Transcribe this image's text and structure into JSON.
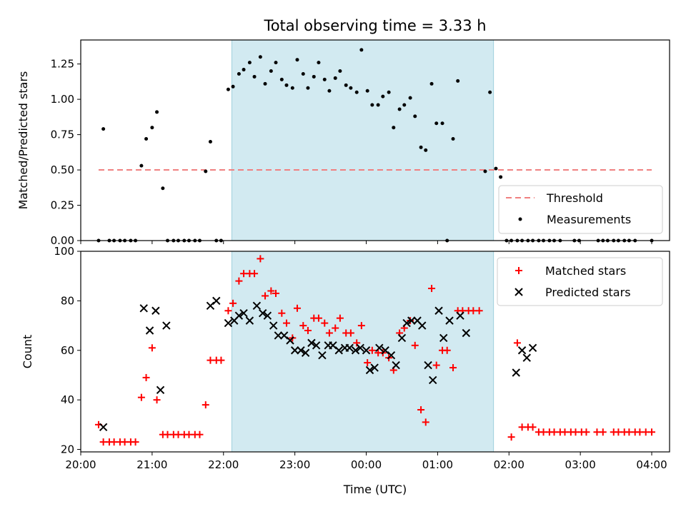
{
  "title": "Total observing time = 3.33 h",
  "colors": {
    "threshold": "#f08080",
    "measurement": "#000000",
    "matched": "#ff0000",
    "predicted": "#000000",
    "observing_span": "#add8e6"
  },
  "chart_data": [
    {
      "type": "scatter",
      "panel": "top",
      "ylabel": "Matched/Predicted stars",
      "xlim": [
        "20:00",
        "04:15"
      ],
      "ylim": [
        0,
        1.42
      ],
      "yticks": [
        "0.00",
        "0.25",
        "0.50",
        "0.75",
        "1.00",
        "1.25"
      ],
      "grid": false,
      "legend_position": "lower-right",
      "shaded_span": [
        "22:07",
        "01:47"
      ],
      "threshold": {
        "name": "Threshold",
        "value": 0.5,
        "x_range": [
          "20:15",
          "04:00"
        ]
      },
      "series": [
        {
          "name": "Measurements",
          "points": [
            [
              "20:15",
              0.0
            ],
            [
              "20:19",
              0.79
            ],
            [
              "20:24",
              0.0
            ],
            [
              "20:28",
              0.0
            ],
            [
              "20:33",
              0.0
            ],
            [
              "20:37",
              0.0
            ],
            [
              "20:42",
              0.0
            ],
            [
              "20:46",
              0.0
            ],
            [
              "20:51",
              0.53
            ],
            [
              "20:55",
              0.72
            ],
            [
              "21:00",
              0.8
            ],
            [
              "21:04",
              0.91
            ],
            [
              "21:09",
              0.37
            ],
            [
              "21:13",
              0.0
            ],
            [
              "21:18",
              0.0
            ],
            [
              "21:22",
              0.0
            ],
            [
              "21:27",
              0.0
            ],
            [
              "21:31",
              0.0
            ],
            [
              "21:36",
              0.0
            ],
            [
              "21:40",
              0.0
            ],
            [
              "21:45",
              0.49
            ],
            [
              "21:49",
              0.7
            ],
            [
              "21:54",
              0.0
            ],
            [
              "21:58",
              0.0
            ],
            [
              "22:04",
              1.07
            ],
            [
              "22:08",
              1.09
            ],
            [
              "22:13",
              1.18
            ],
            [
              "22:17",
              1.21
            ],
            [
              "22:22",
              1.26
            ],
            [
              "22:26",
              1.16
            ],
            [
              "22:31",
              1.3
            ],
            [
              "22:35",
              1.11
            ],
            [
              "22:40",
              1.2
            ],
            [
              "22:44",
              1.26
            ],
            [
              "22:49",
              1.14
            ],
            [
              "22:53",
              1.1
            ],
            [
              "22:58",
              1.08
            ],
            [
              "23:02",
              1.28
            ],
            [
              "23:07",
              1.18
            ],
            [
              "23:11",
              1.08
            ],
            [
              "23:16",
              1.16
            ],
            [
              "23:20",
              1.26
            ],
            [
              "23:25",
              1.14
            ],
            [
              "23:29",
              1.06
            ],
            [
              "23:34",
              1.15
            ],
            [
              "23:38",
              1.2
            ],
            [
              "23:43",
              1.1
            ],
            [
              "23:47",
              1.08
            ],
            [
              "23:52",
              1.05
            ],
            [
              "23:56",
              1.35
            ],
            [
              "00:01",
              1.06
            ],
            [
              "00:05",
              0.96
            ],
            [
              "00:10",
              0.96
            ],
            [
              "00:14",
              1.02
            ],
            [
              "00:19",
              1.05
            ],
            [
              "00:23",
              0.8
            ],
            [
              "00:28",
              0.93
            ],
            [
              "00:32",
              0.96
            ],
            [
              "00:37",
              1.01
            ],
            [
              "00:41",
              0.88
            ],
            [
              "00:46",
              0.66
            ],
            [
              "00:50",
              0.64
            ],
            [
              "00:55",
              1.11
            ],
            [
              "00:59",
              0.83
            ],
            [
              "01:04",
              0.83
            ],
            [
              "01:08",
              0.0
            ],
            [
              "01:13",
              0.72
            ],
            [
              "01:17",
              1.13
            ],
            [
              "01:40",
              0.49
            ],
            [
              "01:44",
              1.05
            ],
            [
              "01:49",
              0.51
            ],
            [
              "01:53",
              0.45
            ],
            [
              "01:58",
              0.0
            ],
            [
              "02:02",
              0.0
            ],
            [
              "02:07",
              0.0
            ],
            [
              "02:11",
              0.0
            ],
            [
              "02:16",
              0.0
            ],
            [
              "02:20",
              0.0
            ],
            [
              "02:25",
              0.0
            ],
            [
              "02:29",
              0.0
            ],
            [
              "02:34",
              0.0
            ],
            [
              "02:38",
              0.0
            ],
            [
              "02:43",
              0.0
            ],
            [
              "02:55",
              0.0
            ],
            [
              "02:59",
              0.0
            ],
            [
              "03:15",
              0.0
            ],
            [
              "03:19",
              0.0
            ],
            [
              "03:23",
              0.0
            ],
            [
              "03:28",
              0.0
            ],
            [
              "03:32",
              0.0
            ],
            [
              "03:37",
              0.0
            ],
            [
              "03:41",
              0.0
            ],
            [
              "03:46",
              0.0
            ],
            [
              "04:00",
              0.0
            ]
          ]
        }
      ]
    },
    {
      "type": "scatter",
      "panel": "bottom",
      "xlabel": "Time (UTC)",
      "ylabel": "Count",
      "xlim": [
        "20:00",
        "04:15"
      ],
      "ylim": [
        19,
        100
      ],
      "xticks": [
        "20:00",
        "21:00",
        "22:00",
        "23:00",
        "00:00",
        "01:00",
        "02:00",
        "03:00",
        "04:00"
      ],
      "yticks": [
        "20",
        "40",
        "60",
        "80",
        "100"
      ],
      "grid": false,
      "legend_position": "upper-right",
      "shaded_span": [
        "22:07",
        "01:47"
      ],
      "series": [
        {
          "name": "Matched stars",
          "marker": "plus",
          "points": [
            [
              "20:15",
              30
            ],
            [
              "20:19",
              23
            ],
            [
              "20:24",
              23
            ],
            [
              "20:28",
              23
            ],
            [
              "20:33",
              23
            ],
            [
              "20:37",
              23
            ],
            [
              "20:42",
              23
            ],
            [
              "20:46",
              23
            ],
            [
              "20:51",
              41
            ],
            [
              "20:55",
              49
            ],
            [
              "21:00",
              61
            ],
            [
              "21:04",
              40
            ],
            [
              "21:09",
              26
            ],
            [
              "21:13",
              26
            ],
            [
              "21:18",
              26
            ],
            [
              "21:22",
              26
            ],
            [
              "21:27",
              26
            ],
            [
              "21:31",
              26
            ],
            [
              "21:36",
              26
            ],
            [
              "21:40",
              26
            ],
            [
              "21:45",
              38
            ],
            [
              "21:49",
              56
            ],
            [
              "21:54",
              56
            ],
            [
              "21:58",
              56
            ],
            [
              "22:04",
              76
            ],
            [
              "22:08",
              79
            ],
            [
              "22:13",
              88
            ],
            [
              "22:17",
              91
            ],
            [
              "22:22",
              91
            ],
            [
              "22:26",
              91
            ],
            [
              "22:31",
              97
            ],
            [
              "22:35",
              82
            ],
            [
              "22:40",
              84
            ],
            [
              "22:44",
              83
            ],
            [
              "22:49",
              75
            ],
            [
              "22:53",
              71
            ],
            [
              "22:58",
              65
            ],
            [
              "23:02",
              77
            ],
            [
              "23:07",
              70
            ],
            [
              "23:11",
              68
            ],
            [
              "23:16",
              73
            ],
            [
              "23:20",
              73
            ],
            [
              "23:25",
              71
            ],
            [
              "23:29",
              67
            ],
            [
              "23:34",
              69
            ],
            [
              "23:38",
              73
            ],
            [
              "23:43",
              67
            ],
            [
              "23:47",
              67
            ],
            [
              "23:52",
              63
            ],
            [
              "23:56",
              70
            ],
            [
              "00:01",
              55
            ],
            [
              "00:05",
              60
            ],
            [
              "00:10",
              59
            ],
            [
              "00:14",
              59
            ],
            [
              "00:19",
              57
            ],
            [
              "00:23",
              52
            ],
            [
              "00:28",
              67
            ],
            [
              "00:32",
              69
            ],
            [
              "00:37",
              72
            ],
            [
              "00:41",
              62
            ],
            [
              "00:46",
              36
            ],
            [
              "00:50",
              31
            ],
            [
              "00:55",
              85
            ],
            [
              "00:59",
              54
            ],
            [
              "01:04",
              60
            ],
            [
              "01:08",
              60
            ],
            [
              "01:13",
              53
            ],
            [
              "01:17",
              76
            ],
            [
              "01:21",
              76
            ],
            [
              "01:26",
              76
            ],
            [
              "01:30",
              76
            ],
            [
              "01:35",
              76
            ],
            [
              "02:02",
              25
            ],
            [
              "02:07",
              63
            ],
            [
              "02:11",
              29
            ],
            [
              "02:16",
              29
            ],
            [
              "02:20",
              29
            ],
            [
              "02:25",
              27
            ],
            [
              "02:29",
              27
            ],
            [
              "02:34",
              27
            ],
            [
              "02:38",
              27
            ],
            [
              "02:43",
              27
            ],
            [
              "02:47",
              27
            ],
            [
              "02:52",
              27
            ],
            [
              "02:56",
              27
            ],
            [
              "03:01",
              27
            ],
            [
              "03:05",
              27
            ],
            [
              "03:14",
              27
            ],
            [
              "03:19",
              27
            ],
            [
              "03:28",
              27
            ],
            [
              "03:32",
              27
            ],
            [
              "03:37",
              27
            ],
            [
              "03:41",
              27
            ],
            [
              "03:46",
              27
            ],
            [
              "03:50",
              27
            ],
            [
              "03:55",
              27
            ],
            [
              "04:00",
              27
            ]
          ]
        },
        {
          "name": "Predicted stars",
          "marker": "x",
          "points": [
            [
              "20:19",
              29
            ],
            [
              "20:53",
              77
            ],
            [
              "20:58",
              68
            ],
            [
              "21:03",
              76
            ],
            [
              "21:07",
              44
            ],
            [
              "21:12",
              70
            ],
            [
              "21:49",
              78
            ],
            [
              "21:54",
              80
            ],
            [
              "22:04",
              71
            ],
            [
              "22:09",
              72
            ],
            [
              "22:13",
              74
            ],
            [
              "22:17",
              75
            ],
            [
              "22:22",
              72
            ],
            [
              "22:28",
              78
            ],
            [
              "22:33",
              75
            ],
            [
              "22:37",
              74
            ],
            [
              "22:42",
              70
            ],
            [
              "22:46",
              66
            ],
            [
              "22:51",
              66
            ],
            [
              "22:56",
              64
            ],
            [
              "23:00",
              60
            ],
            [
              "23:05",
              60
            ],
            [
              "23:09",
              59
            ],
            [
              "23:14",
              63
            ],
            [
              "23:18",
              62
            ],
            [
              "23:23",
              58
            ],
            [
              "23:28",
              62
            ],
            [
              "23:32",
              62
            ],
            [
              "23:37",
              60
            ],
            [
              "23:42",
              61
            ],
            [
              "23:46",
              61
            ],
            [
              "23:51",
              60
            ],
            [
              "23:55",
              61
            ],
            [
              "00:00",
              60
            ],
            [
              "00:03",
              52
            ],
            [
              "00:07",
              53
            ],
            [
              "00:11",
              61
            ],
            [
              "00:16",
              60
            ],
            [
              "00:21",
              58
            ],
            [
              "00:25",
              54
            ],
            [
              "00:30",
              65
            ],
            [
              "00:34",
              71
            ],
            [
              "00:38",
              72
            ],
            [
              "00:43",
              72
            ],
            [
              "00:47",
              70
            ],
            [
              "00:52",
              54
            ],
            [
              "00:56",
              48
            ],
            [
              "01:01",
              76
            ],
            [
              "01:05",
              65
            ],
            [
              "01:10",
              72
            ],
            [
              "01:19",
              74
            ],
            [
              "01:24",
              67
            ],
            [
              "02:06",
              51
            ],
            [
              "02:11",
              60
            ],
            [
              "02:15",
              57
            ],
            [
              "02:20",
              61
            ]
          ]
        }
      ]
    }
  ]
}
